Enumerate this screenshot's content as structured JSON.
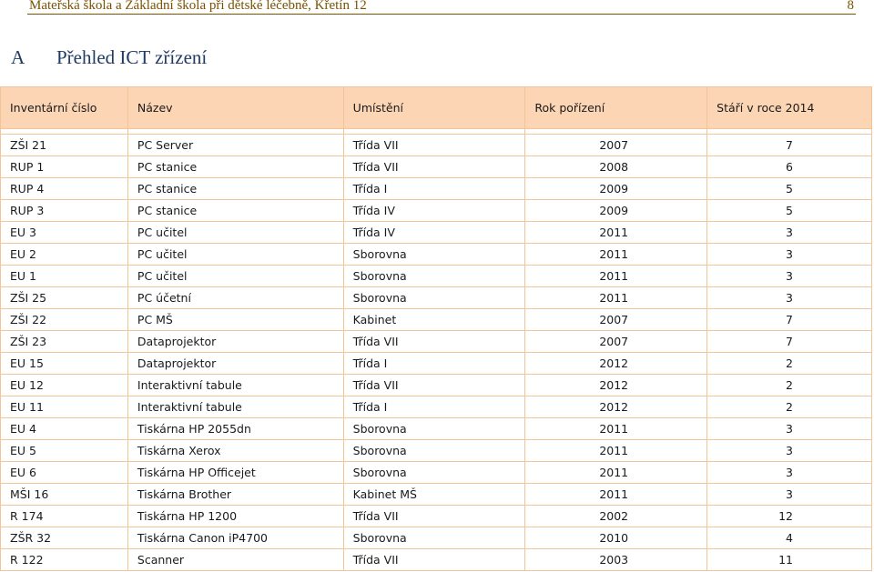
{
  "header": {
    "title": "Mateřská škola a Základní škola při dětské léčebně, Křetín 12",
    "page_number": "8"
  },
  "section": {
    "letter": "A",
    "title": "Přehled ICT zřízení"
  },
  "table": {
    "columns": [
      "Inventární číslo",
      "Název",
      "Umístění",
      "Rok pořízení",
      "Stáří v roce 2014"
    ],
    "rows": [
      [
        "ZŠI 21",
        "PC Server",
        "Třída VII",
        "2007",
        "7"
      ],
      [
        "RUP 1",
        "PC stanice",
        "Třída VII",
        "2008",
        "6"
      ],
      [
        "RUP 4",
        "PC stanice",
        "Třída I",
        "2009",
        "5"
      ],
      [
        "RUP 3",
        "PC stanice",
        "Třída IV",
        "2009",
        "5"
      ],
      [
        "EU 3",
        "PC učitel",
        "Třída IV",
        "2011",
        "3"
      ],
      [
        "EU 2",
        "PC učitel",
        "Sborovna",
        "2011",
        "3"
      ],
      [
        "EU 1",
        "PC učitel",
        "Sborovna",
        "2011",
        "3"
      ],
      [
        "ZŠI 25",
        "PC účetní",
        "Sborovna",
        "2011",
        "3"
      ],
      [
        "ZŠI 22",
        "PC MŠ",
        "Kabinet",
        "2007",
        "7"
      ],
      [
        "ZŠI 23",
        "Dataprojektor",
        "Třída VII",
        "2007",
        "7"
      ],
      [
        "EU 15",
        "Dataprojektor",
        "Třída I",
        "2012",
        "2"
      ],
      [
        "EU 12",
        "Interaktivní tabule",
        "Třída VII",
        "2012",
        "2"
      ],
      [
        "EU 11",
        "Interaktivní tabule",
        "Třída I",
        "2012",
        "2"
      ],
      [
        "EU 4",
        "Tiskárna HP 2055dn",
        "Sborovna",
        "2011",
        "3"
      ],
      [
        "EU 5",
        "Tiskárna Xerox",
        "Sborovna",
        "2011",
        "3"
      ],
      [
        "EU 6",
        "Tiskárna HP Officejet",
        "Sborovna",
        "2011",
        "3"
      ],
      [
        "MŠI 16",
        "Tiskárna Brother",
        "Kabinet MŠ",
        "2011",
        "3"
      ],
      [
        "R 174",
        "Tiskárna HP 1200",
        "Třída VII",
        "2002",
        "12"
      ],
      [
        "ZŠR 32",
        "Tiskárna Canon iP4700",
        "Sborovna",
        "2010",
        "4"
      ],
      [
        "R 122",
        "Scanner",
        "Třída VII",
        "2003",
        "11"
      ]
    ]
  },
  "colors": {
    "header_fill": "#fcd5b4",
    "cell_border": "#f3c39a",
    "heading_text": "#1f3a63",
    "running_header_text": "#7a5200"
  }
}
